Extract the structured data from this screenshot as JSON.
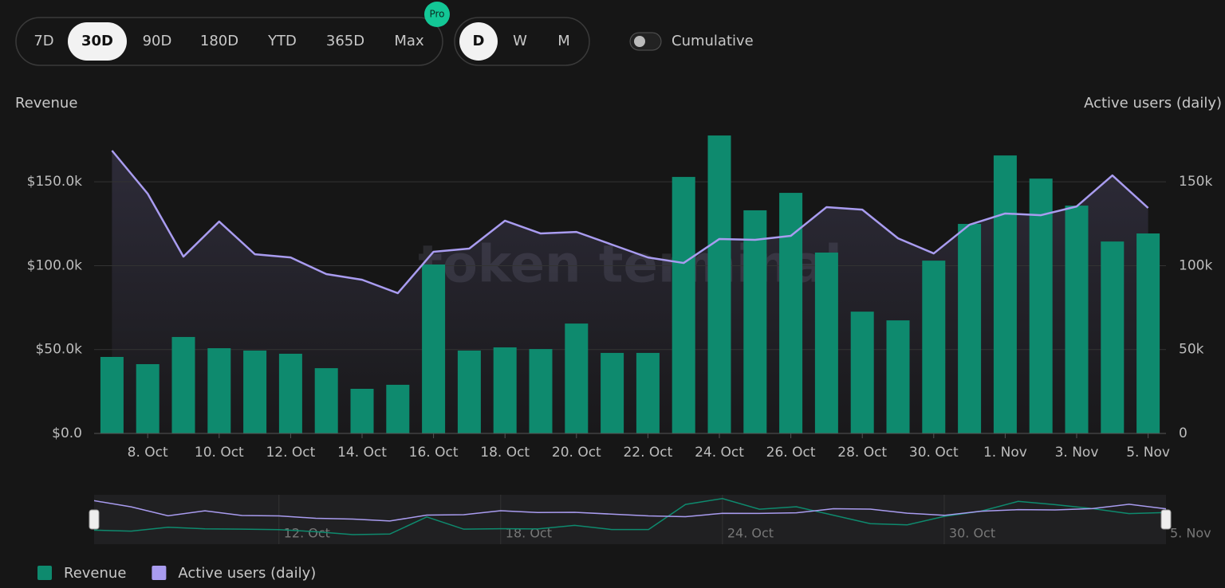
{
  "controls": {
    "ranges": [
      "7D",
      "30D",
      "90D",
      "180D",
      "YTD",
      "365D",
      "Max"
    ],
    "selected_range": 1,
    "pro_badge": "Pro",
    "intervals": [
      "D",
      "W",
      "M"
    ],
    "selected_interval": 0,
    "cumulative": "Cumulative"
  },
  "chart_data": {
    "type": "bar",
    "y_label": "Revenue",
    "y2_label": "Active users (daily)",
    "watermark": "token terminal",
    "categories": [
      null,
      "8. Oct",
      null,
      "10. Oct",
      null,
      "12. Oct",
      null,
      "14. Oct",
      null,
      "16. Oct",
      null,
      "18. Oct",
      null,
      "20. Oct",
      null,
      "22. Oct",
      null,
      "24. Oct",
      null,
      "26. Oct",
      null,
      "28. Oct",
      null,
      "30. Oct",
      null,
      "1. Nov",
      null,
      "3. Nov",
      null,
      "5. Nov"
    ],
    "series": [
      {
        "name": "Revenue",
        "type": "bar",
        "color": "#0e8a6e",
        "values": [
          45600,
          41300,
          57500,
          50800,
          49400,
          47500,
          38900,
          26600,
          29000,
          100700,
          49400,
          51300,
          50300,
          65500,
          48000,
          48000,
          152900,
          177600,
          133000,
          143400,
          107800,
          72600,
          67400,
          103000,
          124900,
          165700,
          151900,
          135800,
          114400,
          119200
        ]
      },
      {
        "name": "Active users (daily)",
        "type": "line",
        "axis": "y2",
        "color": "#a99cf0",
        "values": [
          168600,
          142900,
          105400,
          126300,
          106800,
          104900,
          95000,
          91600,
          83600,
          108300,
          110200,
          126800,
          119200,
          120100,
          112500,
          104900,
          101600,
          115900,
          115400,
          117800,
          134900,
          133400,
          116300,
          107300,
          124400,
          131100,
          130100,
          135300,
          153800,
          134400
        ]
      }
    ],
    "ylim": [
      0,
      180000
    ],
    "yticks": [
      {
        "value": 0,
        "label": "$0.0"
      },
      {
        "value": 50000,
        "label": "$50.0k"
      },
      {
        "value": 100000,
        "label": "$100.0k"
      },
      {
        "value": 150000,
        "label": "$150.0k"
      }
    ],
    "y2lim": [
      0,
      180000
    ],
    "y2ticks": [
      0,
      {
        "value": 50000,
        "label": "50k"
      },
      {
        "value": 100000,
        "label": "100k"
      },
      {
        "value": 150000,
        "label": "150k"
      }
    ],
    "grid": true
  },
  "navigator": {
    "labels": [
      "12. Oct",
      "18. Oct",
      "24. Oct",
      "30. Oct",
      "5. Nov"
    ]
  }
}
